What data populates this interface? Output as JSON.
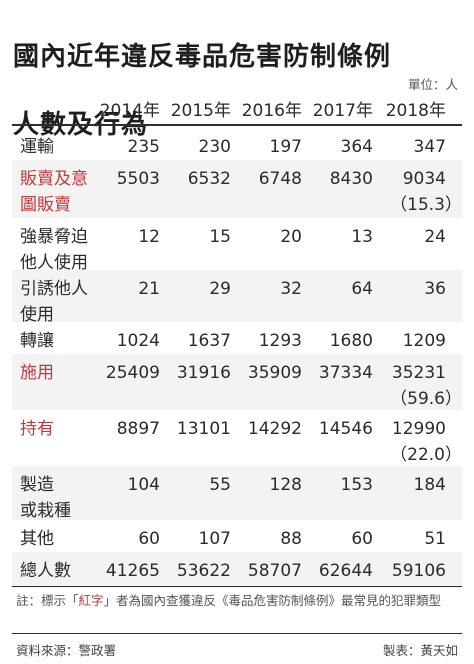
{
  "title": {
    "line1": "國內近年違反毒品危害防制條例",
    "line2": "人數及行為"
  },
  "unit": "單位：人",
  "years": [
    "2014年",
    "2015年",
    "2016年",
    "2017年",
    "2018年"
  ],
  "rows": [
    {
      "label": "運輸",
      "highlight": false,
      "values": [
        "235",
        "230",
        "197",
        "364",
        "347"
      ],
      "sub": ""
    },
    {
      "label": "販賣及意\n圖販賣",
      "highlight": true,
      "values": [
        "5503",
        "6532",
        "6748",
        "8430",
        "9034"
      ],
      "sub": "（15.3）"
    },
    {
      "label": "強暴脅迫\n他人使用",
      "highlight": false,
      "values": [
        "12",
        "15",
        "20",
        "13",
        "24"
      ],
      "sub": ""
    },
    {
      "label": "引誘他人\n使用",
      "highlight": false,
      "values": [
        "21",
        "29",
        "32",
        "64",
        "36"
      ],
      "sub": ""
    },
    {
      "label": "轉讓",
      "highlight": false,
      "values": [
        "1024",
        "1637",
        "1293",
        "1680",
        "1209"
      ],
      "sub": ""
    },
    {
      "label": "施用",
      "highlight": true,
      "values": [
        "25409",
        "31916",
        "35909",
        "37334",
        "35231"
      ],
      "sub": "（59.6）"
    },
    {
      "label": "持有",
      "highlight": true,
      "values": [
        "8897",
        "13101",
        "14292",
        "14546",
        "12990"
      ],
      "sub": "（22.0）"
    },
    {
      "label": "製造\n或栽種",
      "highlight": false,
      "values": [
        "104",
        "55",
        "128",
        "153",
        "184"
      ],
      "sub": ""
    },
    {
      "label": "其他",
      "highlight": false,
      "values": [
        "60",
        "107",
        "88",
        "60",
        "51"
      ],
      "sub": ""
    },
    {
      "label": "總人數",
      "highlight": false,
      "values": [
        "41265",
        "53622",
        "58707",
        "62644",
        "59106"
      ],
      "sub": ""
    }
  ],
  "note": {
    "prefix": "註：標示「",
    "highlight": "紅字",
    "suffix": "」者為國內查獲違反《毒品危害防制條例》最常見的犯罪類型"
  },
  "footer": {
    "source": "資料來源：警政署",
    "credit": "製表：黃天如"
  },
  "colors": {
    "highlight": "#c0393b",
    "shade": "#f3f3f3",
    "text": "#2b2b2b"
  }
}
